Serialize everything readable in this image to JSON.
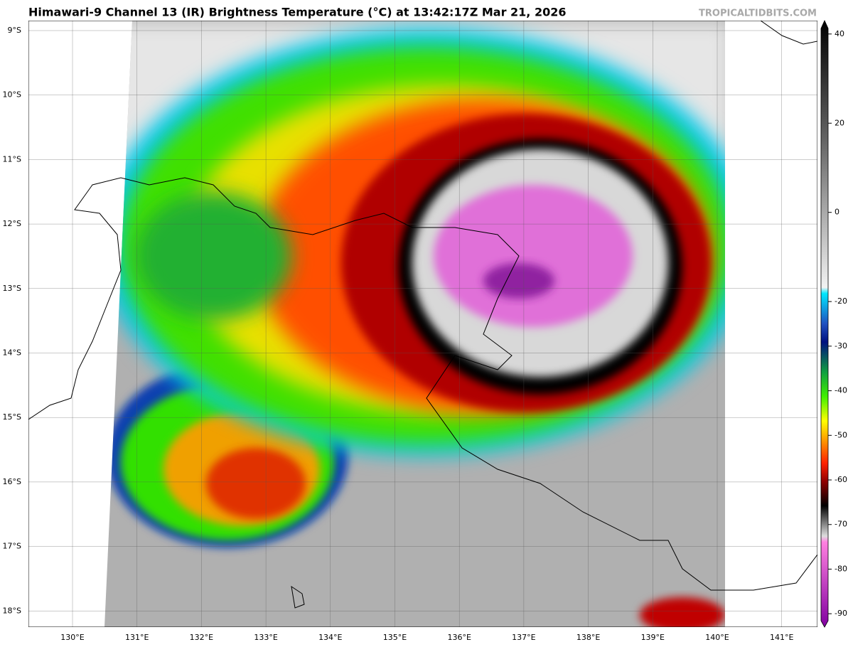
{
  "header": {
    "title": "Himawari-9 Channel 13 (IR) Brightness Temperature (°C) at 13:42:17Z Mar 21, 2026",
    "watermark": "TROPICALTIDBITS.COM"
  },
  "map": {
    "lat_labels": [
      "9°S",
      "10°S",
      "11°S",
      "12°S",
      "13°S",
      "14°S",
      "15°S",
      "16°S",
      "17°S",
      "18°S"
    ],
    "lon_labels": [
      "130°E",
      "131°E",
      "132°E",
      "133°E",
      "134°E",
      "135°E",
      "136°E",
      "137°E",
      "138°E",
      "139°E",
      "140°E",
      "141°E"
    ]
  },
  "colorbar": {
    "lim": [
      -93,
      43
    ],
    "ticks": [
      40,
      20,
      0,
      -20,
      -30,
      -40,
      -50,
      -60,
      -70,
      -80,
      -90
    ]
  }
}
